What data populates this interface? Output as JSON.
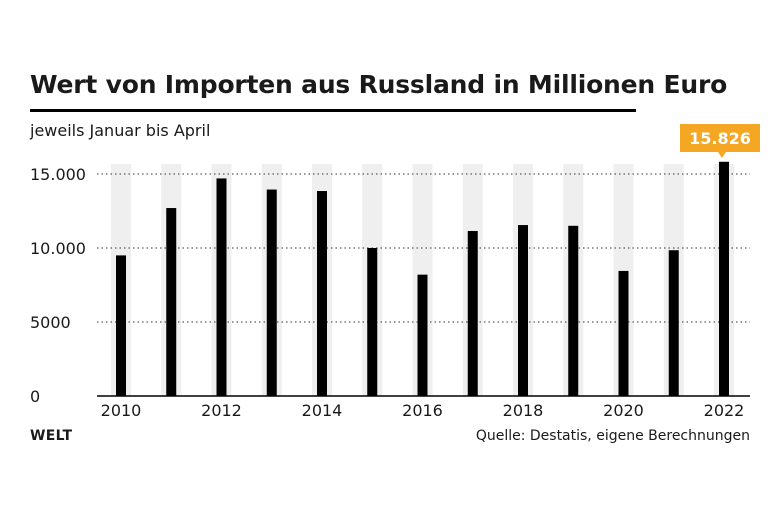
{
  "header": {
    "title": "Wert von Importen aus Russland in Millionen Euro",
    "subtitle": "jeweils Januar bis April"
  },
  "footer": {
    "brand": "WELT",
    "source": "Quelle: Destatis, eigene Berechnungen"
  },
  "colors": {
    "bar": "#000000",
    "band": "#efefef",
    "highlight": "#f5a623",
    "gridline": "#333333"
  },
  "chart_data": {
    "type": "bar",
    "categories": [
      "2010",
      "2011",
      "2012",
      "2013",
      "2014",
      "2015",
      "2016",
      "2017",
      "2018",
      "2019",
      "2020",
      "2021",
      "2022"
    ],
    "values": [
      9500,
      12700,
      14700,
      13950,
      13850,
      10000,
      8200,
      11150,
      11550,
      11500,
      8450,
      9850,
      15826
    ],
    "highlight": {
      "index": 12,
      "label": "15.826"
    },
    "ylim": [
      0,
      15826
    ],
    "yticks": [
      {
        "value": 15000,
        "label": "15.000"
      },
      {
        "value": 10000,
        "label": "10.000"
      },
      {
        "value": 5000,
        "label": "5000"
      },
      {
        "value": 0,
        "label": "0"
      }
    ],
    "xticks": [
      "2010",
      "2012",
      "2014",
      "2016",
      "2018",
      "2020",
      "2022"
    ],
    "grid": true
  }
}
